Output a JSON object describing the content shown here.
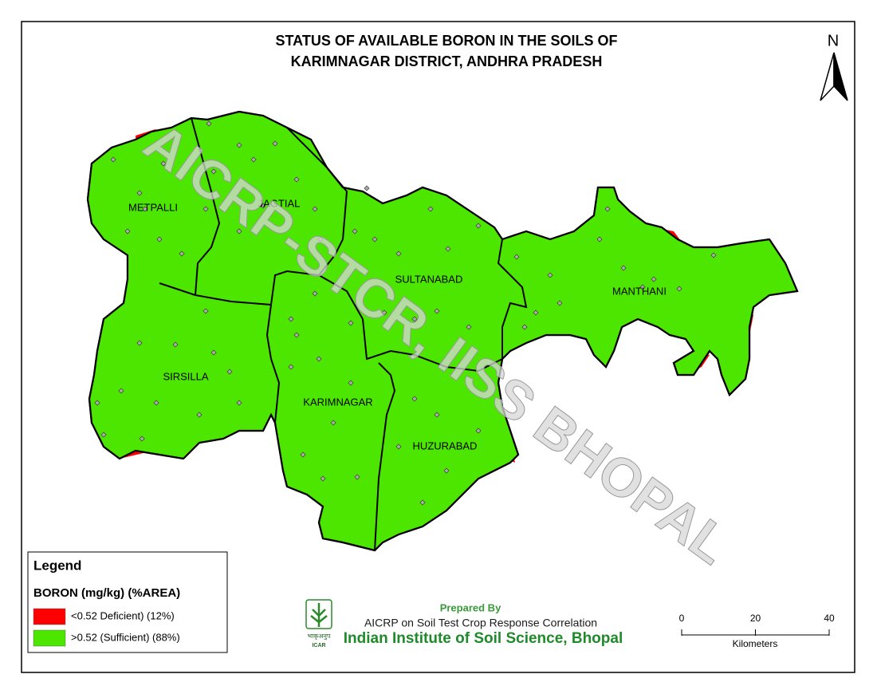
{
  "title": [
    "STATUS OF AVAILABLE BORON IN THE SOILS OF",
    "KARIMNAGAR DISTRICT, ANDHRA PRADESH"
  ],
  "districts": [
    "METPALLI",
    "JAGTIAL",
    "SULTANABAD",
    "MANTHANI",
    "SIRSILLA",
    "KARIMNAGAR",
    "HUZURABAD"
  ],
  "north": "N",
  "watermark": "AICRP-STCR, IISS BHOPAL",
  "legend": {
    "title": "Legend",
    "subtitle": "BORON (mg/kg) (%AREA)",
    "entries": [
      {
        "label": "<0.52 Deficient) (12%)",
        "color": "#ff0000"
      },
      {
        "label": ">0.52 (Sufficient) (88%)",
        "color": "#4ce600"
      }
    ]
  },
  "credits": {
    "prepared": "Prepared By",
    "program": "AICRP on Soil Test Crop Response Correlation",
    "institute": "Indian Institute of Soil Science, Bhopal",
    "logo_hindi": "भाकृअनुप",
    "logo": "ICAR"
  },
  "scale": {
    "ticks": [
      0,
      20,
      40
    ],
    "unit": "Kilometers"
  }
}
